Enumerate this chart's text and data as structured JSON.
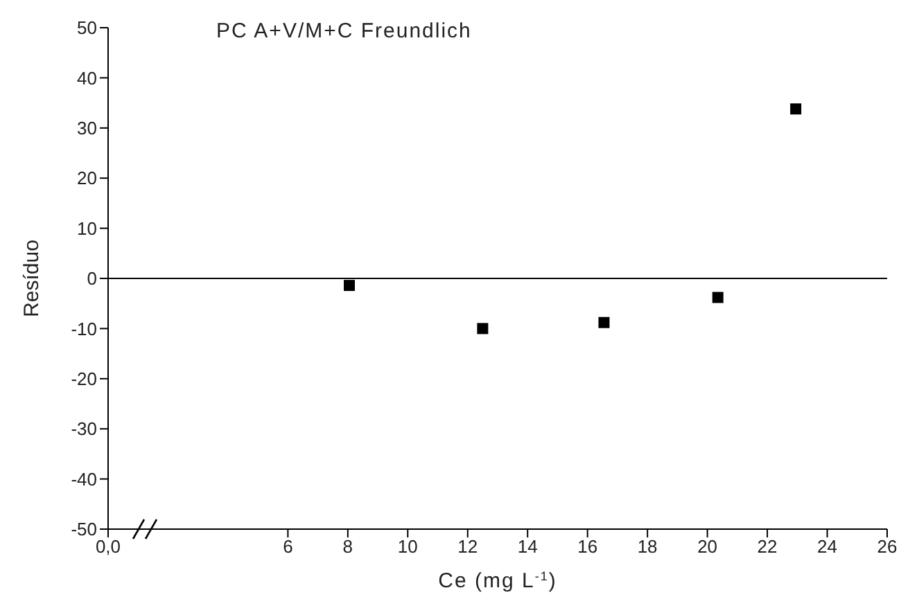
{
  "chart_data": {
    "type": "scatter",
    "title": "PC A+V/M+C Freundlich",
    "xlabel": "Ce (mg L$^{-1}$)",
    "ylabel": "Resíduo",
    "x": [
      8.05,
      12.5,
      16.55,
      20.35,
      22.95
    ],
    "values": [
      -1.4,
      -10,
      -8.8,
      -3.8,
      33.8
    ],
    "color": "#000000",
    "marker": "square",
    "grid": false,
    "legend": false,
    "xlim": [
      0,
      26
    ],
    "xticks": [
      {
        "value": 0,
        "label": "0,0"
      },
      6,
      8,
      10,
      12,
      14,
      16,
      18,
      20,
      22,
      24,
      26
    ],
    "ylim": [
      -50,
      50
    ],
    "yticks": [
      -50,
      -40,
      -30,
      -20,
      -10,
      0,
      10,
      20,
      30,
      40,
      50
    ],
    "ref_lines": [
      {
        "axis": "y",
        "value": 0,
        "color": "#000000"
      }
    ]
  }
}
